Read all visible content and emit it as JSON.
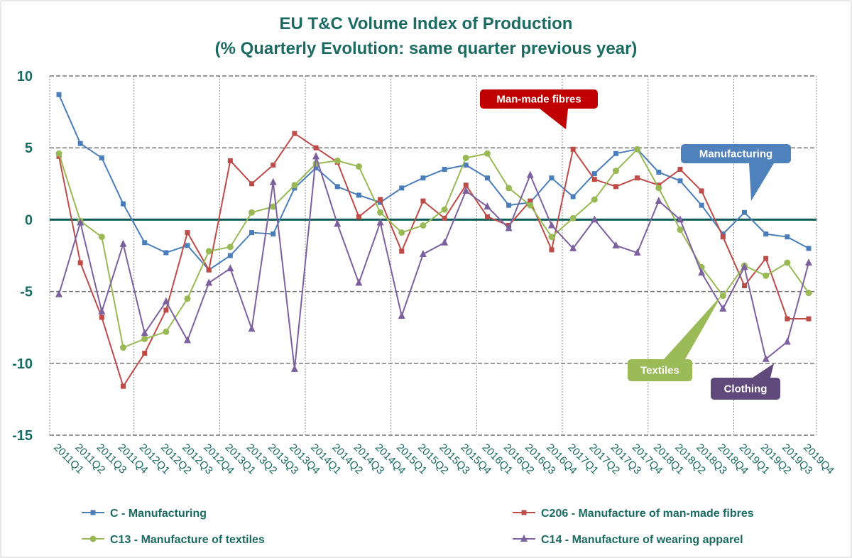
{
  "chart_data": {
    "type": "line",
    "title": "EU T&C Volume Index of Production",
    "subtitle": "(% Quarterly Evolution: same quarter previous year)",
    "xlabel": "",
    "ylabel": "",
    "ylim": [
      -15,
      10
    ],
    "yticks": [
      10,
      5,
      0,
      -5,
      -10,
      -15
    ],
    "grid": true,
    "legend": "bottom",
    "categories": [
      "2011Q1",
      "2011Q2",
      "2011Q3",
      "2011Q4",
      "2012Q1",
      "2012Q2",
      "2012Q3",
      "2012Q4",
      "2013Q1",
      "2013Q2",
      "2013Q3",
      "2013Q4",
      "2014Q1",
      "2014Q2",
      "2014Q3",
      "2014Q4",
      "2015Q1",
      "2015Q2",
      "2015Q3",
      "2015Q4",
      "2016Q1",
      "2016Q2",
      "2016Q3",
      "2016Q4",
      "2017Q1",
      "2017Q2",
      "2017Q3",
      "2017Q4",
      "2018Q1",
      "2018Q2",
      "2018Q3",
      "2018Q4",
      "2019Q1",
      "2019Q2",
      "2019Q3",
      "2019Q4"
    ],
    "series": [
      {
        "name": "C - Manufacturing",
        "color": "#4a7ebb",
        "marker": "square",
        "values": [
          8.7,
          5.3,
          4.3,
          1.1,
          -1.6,
          -2.3,
          -1.8,
          -3.5,
          -2.5,
          -0.9,
          -1.0,
          2.2,
          3.6,
          2.3,
          1.7,
          1.2,
          2.2,
          2.9,
          3.5,
          3.8,
          2.9,
          1.0,
          1.2,
          2.9,
          1.6,
          3.2,
          4.6,
          4.9,
          3.3,
          2.7,
          1.0,
          -1.0,
          0.5,
          -1.0,
          -1.2,
          -2.0
        ]
      },
      {
        "name": "C206 - Manufacture of man-made fibres",
        "color": "#be4b48",
        "marker": "square",
        "values": [
          4.4,
          -3.0,
          -6.8,
          -11.6,
          -9.3,
          -6.3,
          -0.9,
          -3.5,
          4.1,
          2.5,
          3.8,
          6.0,
          5.0,
          4.0,
          0.2,
          1.4,
          -2.2,
          1.3,
          0.1,
          2.4,
          0.2,
          -0.4,
          1.3,
          -2.1,
          4.9,
          2.8,
          2.3,
          2.9,
          2.4,
          3.5,
          2.0,
          -1.2,
          -4.6,
          -2.7,
          -6.9,
          -6.9
        ]
      },
      {
        "name": "C13 - Manufacture of textiles",
        "color": "#98b954",
        "marker": "circle",
        "values": [
          4.6,
          -0.1,
          -1.2,
          -8.9,
          -8.3,
          -7.8,
          -5.5,
          -2.2,
          -1.9,
          0.5,
          0.9,
          2.4,
          3.9,
          4.1,
          3.7,
          0.5,
          -0.9,
          -0.4,
          0.7,
          4.3,
          4.6,
          2.2,
          1.0,
          -1.2,
          0.1,
          1.4,
          3.4,
          4.9,
          2.2,
          -0.7,
          -3.3,
          -5.3,
          -3.2,
          -3.9,
          -3.0,
          -5.1
        ]
      },
      {
        "name": "C14 - Manufacture of wearing apparel",
        "color": "#7d60a0",
        "marker": "triangle",
        "values": [
          -5.2,
          -0.2,
          -6.4,
          -1.7,
          -7.9,
          -5.7,
          -8.4,
          -4.4,
          -3.4,
          -7.6,
          2.6,
          -10.4,
          4.4,
          -0.3,
          -4.4,
          -0.2,
          -6.7,
          -2.4,
          -1.6,
          2.0,
          0.9,
          -0.6,
          3.1,
          -0.4,
          -2.0,
          0.0,
          -1.8,
          -2.3,
          1.3,
          0.0,
          -3.7,
          -6.2,
          -3.3,
          -9.7,
          -8.5,
          -3.0
        ]
      }
    ],
    "annotations": [
      {
        "text": "Man-made fibres",
        "color": "#c00000"
      },
      {
        "text": "Manufacturing",
        "color": "#4f81bd"
      },
      {
        "text": "Textiles",
        "color": "#9bbb59"
      },
      {
        "text": "Clothing",
        "color": "#604a7b"
      }
    ]
  }
}
